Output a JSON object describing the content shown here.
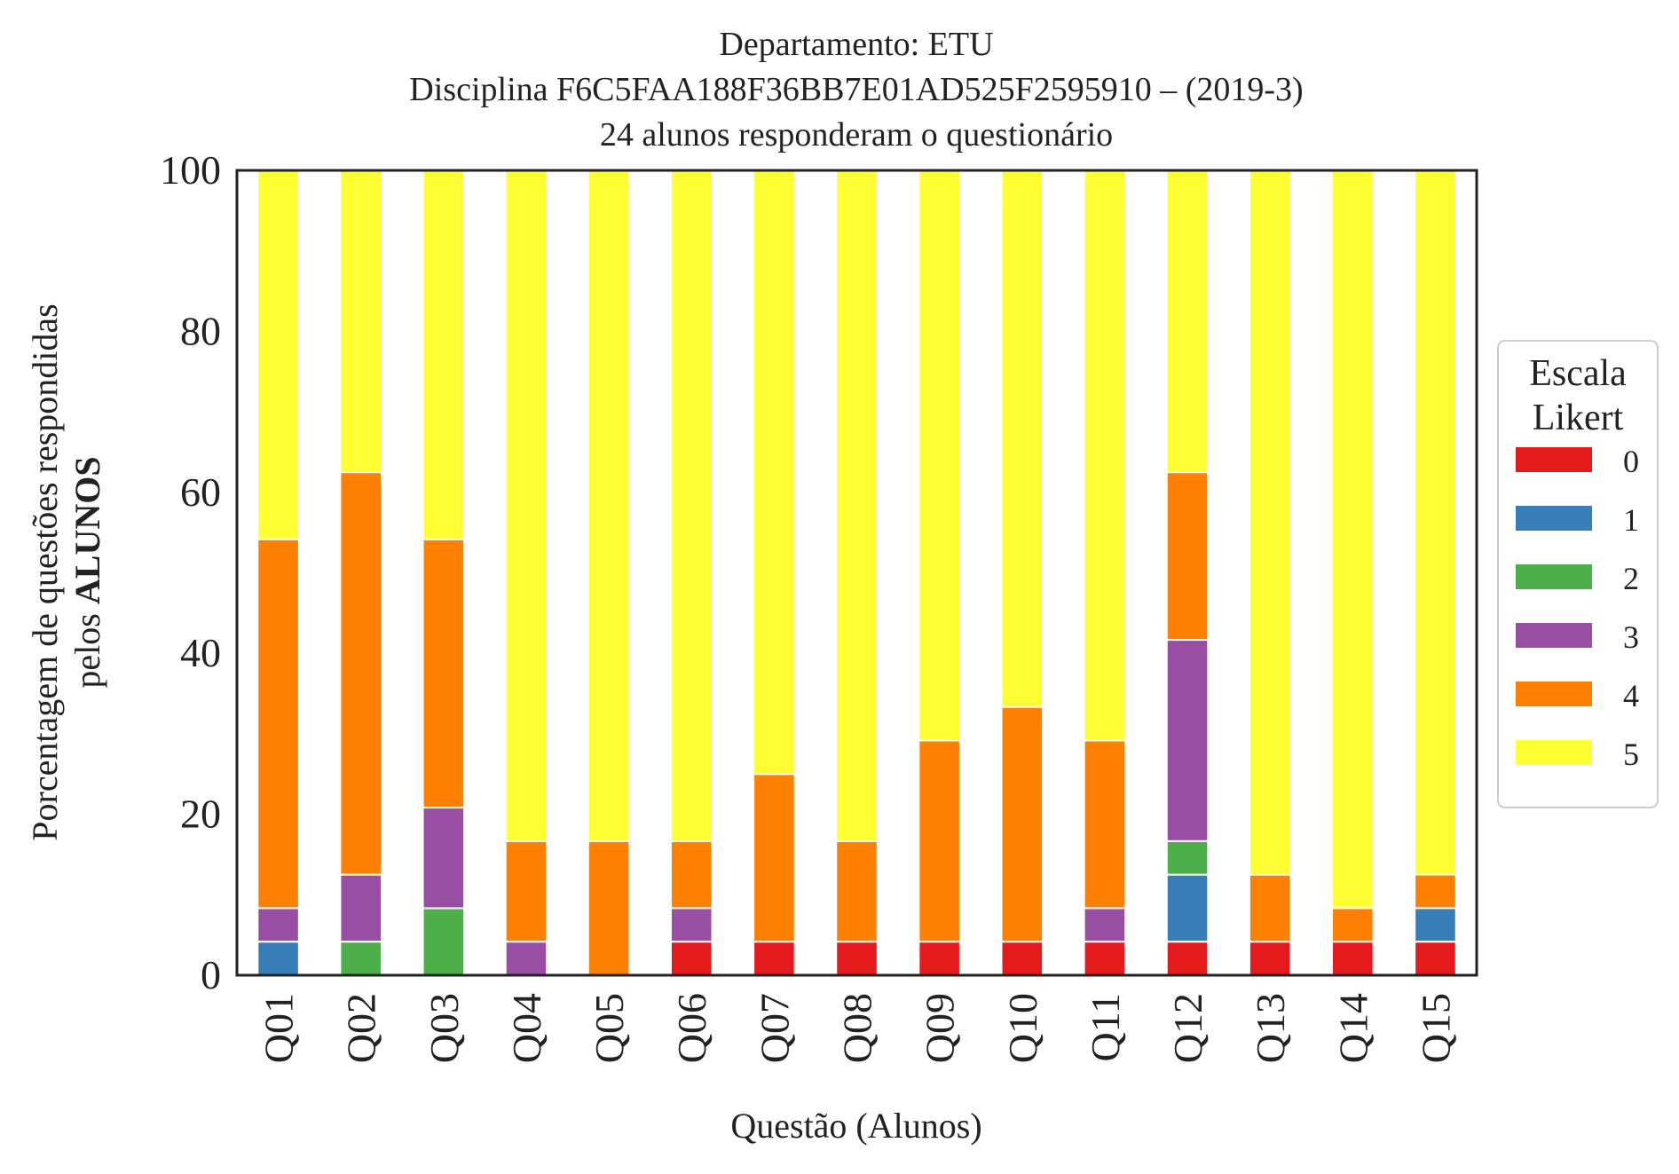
{
  "chart_data": {
    "type": "bar",
    "stacked": true,
    "title_lines": [
      "Departamento: ETU",
      "Disciplina F6C5FAA188F36BB7E01AD525F2595910 – (2019-3)",
      "24 alunos responderam o questionário"
    ],
    "xlabel": "Questão (Alunos)",
    "ylabel_line1": "Porcentagem de questões respondidas",
    "ylabel_line2_prefix": "pelos ",
    "ylabel_line2_bold": "ALUNOS",
    "ylim": [
      0,
      100
    ],
    "yticks": [
      "0",
      "20",
      "40",
      "60",
      "80",
      "100"
    ],
    "grid": false,
    "legend": {
      "title_lines": [
        "Escala",
        "Likert"
      ],
      "placement": "right-center"
    },
    "categories": [
      "Q01",
      "Q02",
      "Q03",
      "Q04",
      "Q05",
      "Q06",
      "Q07",
      "Q08",
      "Q09",
      "Q10",
      "Q11",
      "Q12",
      "Q13",
      "Q14",
      "Q15"
    ],
    "series": [
      {
        "name": "0",
        "color": "#e41a1c",
        "values": [
          0,
          0,
          0,
          0,
          0,
          4.17,
          4.17,
          4.17,
          4.17,
          4.17,
          4.17,
          4.17,
          4.17,
          4.17,
          4.17
        ]
      },
      {
        "name": "1",
        "color": "#377eb8",
        "values": [
          4.17,
          0,
          0,
          0,
          0,
          0,
          0,
          0,
          0,
          0,
          0,
          8.33,
          0,
          0,
          4.17
        ]
      },
      {
        "name": "2",
        "color": "#4daf4a",
        "values": [
          0,
          4.17,
          8.33,
          0,
          0,
          0,
          0,
          0,
          0,
          0,
          0,
          4.17,
          0,
          0,
          0
        ]
      },
      {
        "name": "3",
        "color": "#984ea3",
        "values": [
          4.17,
          8.33,
          12.5,
          4.17,
          0,
          4.17,
          0,
          0,
          0,
          0,
          4.17,
          25.0,
          0,
          0,
          0
        ]
      },
      {
        "name": "4",
        "color": "#ff7f00",
        "values": [
          45.83,
          50.0,
          33.33,
          12.5,
          16.67,
          8.33,
          20.83,
          12.5,
          25.0,
          29.17,
          20.83,
          20.83,
          8.33,
          4.17,
          4.17
        ]
      },
      {
        "name": "5",
        "color": "#ffff33",
        "values": [
          45.83,
          37.5,
          45.83,
          83.33,
          83.33,
          83.33,
          75.0,
          83.33,
          70.83,
          66.67,
          70.83,
          37.5,
          87.5,
          91.67,
          87.5
        ]
      }
    ]
  }
}
